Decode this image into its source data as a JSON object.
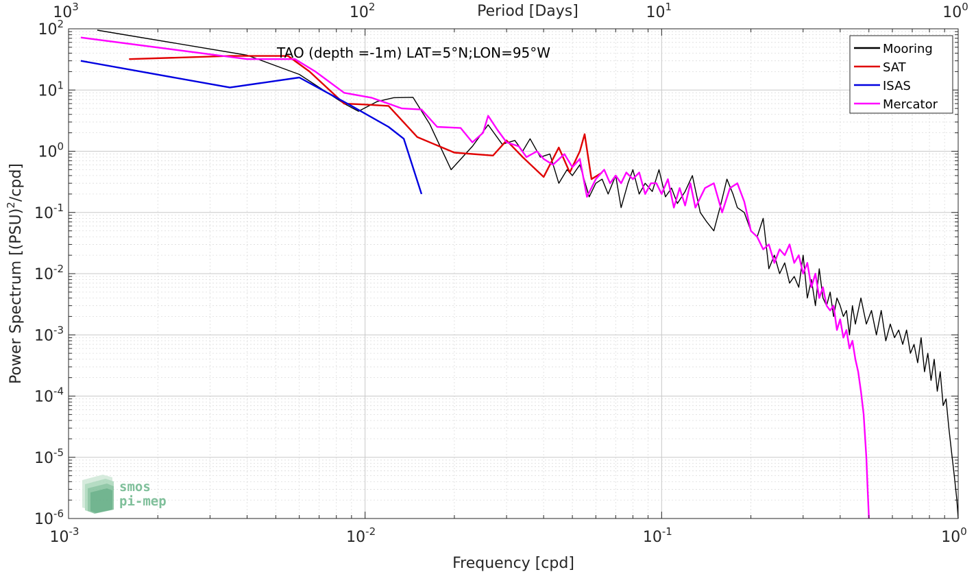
{
  "chart_data": {
    "type": "line",
    "title": "",
    "annotation": "TAO (depth =-1m) LAT=5°N;LON=95°W",
    "xlabel": "Frequency [cpd]",
    "ylabel": "Power Spectrum [(PSU)²/cpd]",
    "x2label": "Period [Days]",
    "xscale": "log",
    "yscale": "log",
    "xlim": [
      0.001,
      1
    ],
    "ylim": [
      1e-06,
      100
    ],
    "grid": true,
    "legend_position": "top-right",
    "x_ticks": [
      {
        "base": "10",
        "exp": "-3"
      },
      {
        "base": "10",
        "exp": "-2"
      },
      {
        "base": "10",
        "exp": "-1"
      },
      {
        "base": "10",
        "exp": "0"
      }
    ],
    "x2_ticks": [
      {
        "base": "10",
        "exp": "3"
      },
      {
        "base": "10",
        "exp": "2"
      },
      {
        "base": "10",
        "exp": "1"
      },
      {
        "base": "10",
        "exp": "0"
      }
    ],
    "y_ticks": [
      {
        "base": "10",
        "exp": "-6"
      },
      {
        "base": "10",
        "exp": "-5"
      },
      {
        "base": "10",
        "exp": "-4"
      },
      {
        "base": "10",
        "exp": "-3"
      },
      {
        "base": "10",
        "exp": "-2"
      },
      {
        "base": "10",
        "exp": "-1"
      },
      {
        "base": "10",
        "exp": "0"
      },
      {
        "base": "10",
        "exp": "1"
      },
      {
        "base": "10",
        "exp": "2"
      }
    ],
    "series": [
      {
        "name": "Mooring",
        "color": "#000000",
        "width": 1.4,
        "points": [
          [
            0.00125,
            95
          ],
          [
            0.004,
            37
          ],
          [
            0.006,
            18
          ],
          [
            0.0085,
            6
          ],
          [
            0.0095,
            4.5
          ],
          [
            0.011,
            6.5
          ],
          [
            0.0125,
            7.5
          ],
          [
            0.0145,
            7.6
          ],
          [
            0.0165,
            2.8
          ],
          [
            0.0195,
            0.5
          ],
          [
            0.023,
            1.2
          ],
          [
            0.026,
            2.7
          ],
          [
            0.029,
            1.3
          ],
          [
            0.032,
            1.5
          ],
          [
            0.034,
            1
          ],
          [
            0.036,
            1.6
          ],
          [
            0.039,
            0.8
          ],
          [
            0.042,
            0.9
          ],
          [
            0.045,
            0.3
          ],
          [
            0.048,
            0.5
          ],
          [
            0.05,
            0.4
          ],
          [
            0.053,
            0.6
          ],
          [
            0.057,
            0.18
          ],
          [
            0.06,
            0.3
          ],
          [
            0.063,
            0.35
          ],
          [
            0.066,
            0.2
          ],
          [
            0.07,
            0.4
          ],
          [
            0.073,
            0.12
          ],
          [
            0.077,
            0.3
          ],
          [
            0.08,
            0.5
          ],
          [
            0.084,
            0.2
          ],
          [
            0.088,
            0.3
          ],
          [
            0.093,
            0.22
          ],
          [
            0.098,
            0.5
          ],
          [
            0.103,
            0.18
          ],
          [
            0.108,
            0.25
          ],
          [
            0.113,
            0.14
          ],
          [
            0.12,
            0.22
          ],
          [
            0.127,
            0.4
          ],
          [
            0.135,
            0.1
          ],
          [
            0.142,
            0.07
          ],
          [
            0.15,
            0.05
          ],
          [
            0.158,
            0.13
          ],
          [
            0.166,
            0.35
          ],
          [
            0.174,
            0.2
          ],
          [
            0.18,
            0.12
          ],
          [
            0.19,
            0.1
          ],
          [
            0.2,
            0.05
          ],
          [
            0.21,
            0.04
          ],
          [
            0.22,
            0.08
          ],
          [
            0.23,
            0.012
          ],
          [
            0.24,
            0.02
          ],
          [
            0.25,
            0.01
          ],
          [
            0.26,
            0.015
          ],
          [
            0.27,
            0.007
          ],
          [
            0.28,
            0.009
          ],
          [
            0.29,
            0.006
          ],
          [
            0.3,
            0.02
          ],
          [
            0.31,
            0.004
          ],
          [
            0.32,
            0.008
          ],
          [
            0.33,
            0.003
          ],
          [
            0.34,
            0.012
          ],
          [
            0.35,
            0.004
          ],
          [
            0.36,
            0.003
          ],
          [
            0.37,
            0.005
          ],
          [
            0.38,
            0.002
          ],
          [
            0.39,
            0.004
          ],
          [
            0.4,
            0.003
          ],
          [
            0.41,
            0.002
          ],
          [
            0.42,
            0.0025
          ],
          [
            0.43,
            0.001
          ],
          [
            0.44,
            0.003
          ],
          [
            0.45,
            0.0015
          ],
          [
            0.47,
            0.004
          ],
          [
            0.49,
            0.0015
          ],
          [
            0.51,
            0.0025
          ],
          [
            0.53,
            0.001
          ],
          [
            0.55,
            0.0025
          ],
          [
            0.57,
            0.0008
          ],
          [
            0.59,
            0.0015
          ],
          [
            0.61,
            0.0009
          ],
          [
            0.63,
            0.0012
          ],
          [
            0.65,
            0.0007
          ],
          [
            0.67,
            0.0012
          ],
          [
            0.69,
            0.0005
          ],
          [
            0.71,
            0.0007
          ],
          [
            0.73,
            0.00035
          ],
          [
            0.75,
            0.0009
          ],
          [
            0.77,
            0.00025
          ],
          [
            0.79,
            0.0005
          ],
          [
            0.81,
            0.00018
          ],
          [
            0.83,
            0.0004
          ],
          [
            0.85,
            0.00012
          ],
          [
            0.87,
            0.00025
          ],
          [
            0.89,
            7e-05
          ],
          [
            0.91,
            9e-05
          ],
          [
            0.93,
            3e-05
          ],
          [
            0.95,
            1.2e-05
          ],
          [
            0.97,
            5e-06
          ],
          [
            0.99,
            2e-06
          ],
          [
            1.0,
            1e-06
          ]
        ]
      },
      {
        "name": "SAT",
        "color": "#e00000",
        "width": 2.4,
        "points": [
          [
            0.0016,
            32
          ],
          [
            0.0035,
            36
          ],
          [
            0.0055,
            36
          ],
          [
            0.0065,
            20
          ],
          [
            0.0085,
            6
          ],
          [
            0.01,
            5.8
          ],
          [
            0.012,
            5.5
          ],
          [
            0.015,
            1.7
          ],
          [
            0.02,
            0.95
          ],
          [
            0.027,
            0.85
          ],
          [
            0.03,
            1.5
          ],
          [
            0.034,
            0.8
          ],
          [
            0.04,
            0.38
          ],
          [
            0.045,
            1.15
          ],
          [
            0.049,
            0.45
          ],
          [
            0.053,
            1.0
          ],
          [
            0.055,
            1.9
          ],
          [
            0.058,
            0.35
          ],
          [
            0.063,
            0.45
          ]
        ]
      },
      {
        "name": "ISAS",
        "color": "#0000e0",
        "width": 2.4,
        "points": [
          [
            0.0011,
            30
          ],
          [
            0.0035,
            11
          ],
          [
            0.006,
            16
          ],
          [
            0.009,
            5.5
          ],
          [
            0.012,
            2.5
          ],
          [
            0.0135,
            1.6
          ],
          [
            0.0155,
            0.2
          ]
        ]
      },
      {
        "name": "Mercator",
        "color": "#ff00ff",
        "width": 2.4,
        "points": [
          [
            0.0011,
            72
          ],
          [
            0.004,
            32
          ],
          [
            0.0058,
            32
          ],
          [
            0.0068,
            20
          ],
          [
            0.0085,
            9
          ],
          [
            0.0105,
            7.5
          ],
          [
            0.012,
            6
          ],
          [
            0.0133,
            5
          ],
          [
            0.0155,
            4.8
          ],
          [
            0.0175,
            2.5
          ],
          [
            0.021,
            2.4
          ],
          [
            0.023,
            1.4
          ],
          [
            0.025,
            2
          ],
          [
            0.026,
            3.8
          ],
          [
            0.028,
            2.2
          ],
          [
            0.03,
            1.4
          ],
          [
            0.033,
            1.2
          ],
          [
            0.035,
            0.8
          ],
          [
            0.038,
            1.0
          ],
          [
            0.04,
            0.75
          ],
          [
            0.043,
            0.6
          ],
          [
            0.047,
            0.9
          ],
          [
            0.05,
            0.55
          ],
          [
            0.053,
            0.75
          ],
          [
            0.056,
            0.18
          ],
          [
            0.06,
            0.35
          ],
          [
            0.064,
            0.5
          ],
          [
            0.067,
            0.3
          ],
          [
            0.07,
            0.4
          ],
          [
            0.073,
            0.3
          ],
          [
            0.076,
            0.45
          ],
          [
            0.08,
            0.35
          ],
          [
            0.084,
            0.45
          ],
          [
            0.088,
            0.2
          ],
          [
            0.092,
            0.3
          ],
          [
            0.096,
            0.3
          ],
          [
            0.1,
            0.2
          ],
          [
            0.105,
            0.35
          ],
          [
            0.11,
            0.12
          ],
          [
            0.115,
            0.25
          ],
          [
            0.12,
            0.13
          ],
          [
            0.125,
            0.3
          ],
          [
            0.13,
            0.12
          ],
          [
            0.14,
            0.25
          ],
          [
            0.15,
            0.3
          ],
          [
            0.16,
            0.1
          ],
          [
            0.17,
            0.25
          ],
          [
            0.18,
            0.3
          ],
          [
            0.19,
            0.15
          ],
          [
            0.2,
            0.05
          ],
          [
            0.21,
            0.04
          ],
          [
            0.22,
            0.025
          ],
          [
            0.23,
            0.03
          ],
          [
            0.24,
            0.015
          ],
          [
            0.25,
            0.025
          ],
          [
            0.26,
            0.02
          ],
          [
            0.27,
            0.03
          ],
          [
            0.28,
            0.015
          ],
          [
            0.29,
            0.02
          ],
          [
            0.3,
            0.01
          ],
          [
            0.31,
            0.015
          ],
          [
            0.32,
            0.006
          ],
          [
            0.33,
            0.01
          ],
          [
            0.34,
            0.004
          ],
          [
            0.35,
            0.006
          ],
          [
            0.36,
            0.003
          ],
          [
            0.37,
            0.0025
          ],
          [
            0.38,
            0.003
          ],
          [
            0.39,
            0.0012
          ],
          [
            0.4,
            0.0018
          ],
          [
            0.41,
            0.0009
          ],
          [
            0.42,
            0.0012
          ],
          [
            0.43,
            0.0006
          ],
          [
            0.44,
            0.0008
          ],
          [
            0.45,
            0.0004
          ],
          [
            0.46,
            0.00025
          ],
          [
            0.47,
            0.00012
          ],
          [
            0.48,
            5e-05
          ],
          [
            0.49,
            1e-05
          ],
          [
            0.495,
            3e-06
          ],
          [
            0.5,
            1e-06
          ]
        ]
      }
    ]
  },
  "logo": {
    "line1": "smos",
    "line2": "pi-mep"
  }
}
